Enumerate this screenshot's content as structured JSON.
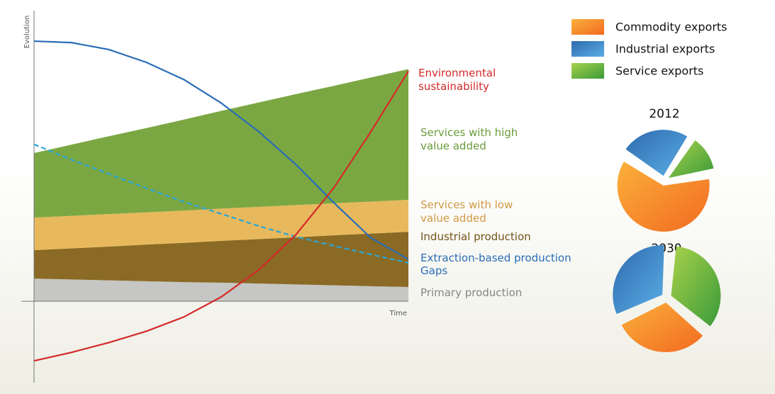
{
  "chart_data": [
    {
      "type": "area_line",
      "xlabel": "Time",
      "ylabel": "Evolution",
      "x": [
        0,
        0.1,
        0.2,
        0.3,
        0.4,
        0.5,
        0.6,
        0.7,
        0.8,
        0.9,
        1
      ],
      "xlim": [
        0,
        1
      ],
      "ylim": [
        -28,
        100
      ],
      "areas": [
        {
          "name": "Primary production",
          "color": "#c6c6c4",
          "label_color": "#858585",
          "values": [
            7.8,
            7.5,
            7.2,
            6.9,
            6.6,
            6.4,
            6.1,
            5.8,
            5.5,
            5.2,
            4.9
          ]
        },
        {
          "name": "Industrial production",
          "color": "#8a6a24",
          "label_color": "#735418",
          "values": [
            9.8,
            10.7,
            11.6,
            12.6,
            13.5,
            14.4,
            15.3,
            16.2,
            17.2,
            18.1,
            19.0
          ]
        },
        {
          "name": "Services with low value added",
          "color": "#e8b95c",
          "label_color": "#d09a44",
          "values": [
            11.2,
            11.2,
            11.2,
            11.1,
            11.1,
            11.1,
            11.1,
            11.1,
            11.0,
            11.0,
            11.0
          ]
        },
        {
          "name": "Services with high value added",
          "color": "#7ba743",
          "label_color": "#6a9c3a",
          "values": [
            22.2,
            24.5,
            26.8,
            29.0,
            31.3,
            33.6,
            35.9,
            38.2,
            40.4,
            42.7,
            45.0
          ]
        }
      ],
      "series": [
        {
          "name": "Extraction-based production",
          "color": "#2a6db5",
          "label_color": "#2a6db5",
          "dashed": false,
          "values": [
            89.5,
            89.0,
            86.6,
            82.2,
            76.3,
            68.2,
            58.4,
            47.0,
            34.0,
            21.8,
            14.4
          ]
        },
        {
          "name": "Gaps",
          "color": "#2aa6d6",
          "label_color": "#2a6db5",
          "dashed": true,
          "values": [
            54.0,
            48.7,
            43.8,
            38.9,
            34.2,
            30.1,
            25.9,
            22.2,
            19.1,
            16.1,
            13.2
          ]
        },
        {
          "name": "Environmental sustainability",
          "color": "#d42a2a",
          "label_color": "#d42a2a",
          "dashed": false,
          "values": [
            -20.5,
            -17.6,
            -14.2,
            -10.3,
            -5.4,
            1.5,
            10.8,
            23.0,
            38.9,
            58.4,
            79.2
          ]
        }
      ]
    },
    {
      "type": "pie",
      "title": "2012",
      "categories": [
        "Commodity exports",
        "Industrial exports",
        "Service exports"
      ],
      "values": [
        62,
        25,
        13
      ],
      "colors": [
        [
          "#fbb03b",
          "#f26a21"
        ],
        [
          "#2e6aad",
          "#5aaee6"
        ],
        [
          "#a8d24a",
          "#3a9a3a"
        ]
      ]
    },
    {
      "type": "pie",
      "title": "2030",
      "categories": [
        "Commodity exports",
        "Industrial exports",
        "Service exports"
      ],
      "values": [
        32,
        33,
        35
      ],
      "colors": [
        [
          "#fbb03b",
          "#f26a21"
        ],
        [
          "#2e6aad",
          "#5aaee6"
        ],
        [
          "#a8d24a",
          "#3a9a3a"
        ]
      ]
    }
  ]
}
